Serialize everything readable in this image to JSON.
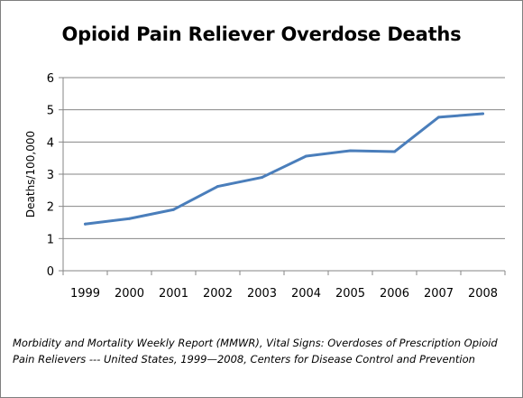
{
  "chart_data": {
    "type": "line",
    "title": "Opioid Pain Reliever Overdose Deaths",
    "xlabel": "",
    "ylabel": "Deaths/100,000",
    "categories": [
      "1999",
      "2000",
      "2001",
      "2002",
      "2003",
      "2004",
      "2005",
      "2006",
      "2007",
      "2008"
    ],
    "series": [
      {
        "values": [
          1.45,
          1.62,
          1.9,
          2.62,
          2.9,
          3.56,
          3.73,
          3.7,
          4.77,
          4.88
        ],
        "color": "#4A7EBB"
      }
    ],
    "ylim": [
      0,
      6
    ],
    "yticks": [
      "0",
      "1",
      "2",
      "3",
      "4",
      "5",
      "6"
    ],
    "grid": true,
    "legend": "none"
  },
  "caption": "Morbidity and Mortality Weekly Report (MMWR), Vital Signs: Overdoses of Prescription Opioid Pain Relievers --- United States, 1999—2008, Centers for Disease Control and Prevention"
}
